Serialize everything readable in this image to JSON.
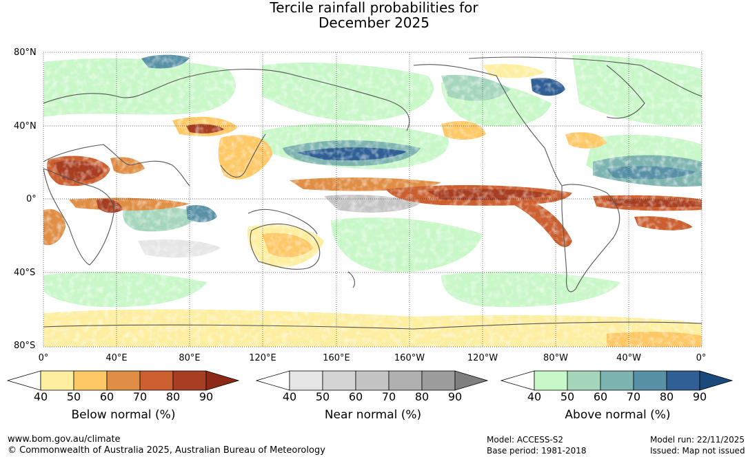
{
  "title": {
    "line1": "Tercile rainfall probabilities for",
    "line2": "December 2025"
  },
  "map": {
    "lat_labels": [
      "80°N",
      "40°N",
      "0°",
      "40°S",
      "80°S"
    ],
    "lon_labels": [
      "0°",
      "40°E",
      "80°E",
      "120°E",
      "160°E",
      "160°W",
      "120°W",
      "80°W",
      "40°W",
      "0°"
    ]
  },
  "legends": [
    {
      "id": "below",
      "caption": "Below normal (%)",
      "ticks": [
        "40",
        "50",
        "60",
        "70",
        "80",
        "90"
      ],
      "colors": [
        "#ffffff",
        "#fdeea0",
        "#fdc865",
        "#e08e45",
        "#cb5f30",
        "#a83e21",
        "#8c2a17"
      ]
    },
    {
      "id": "near",
      "caption": "Near normal (%)",
      "ticks": [
        "40",
        "50",
        "60",
        "70",
        "80",
        "90"
      ],
      "colors": [
        "#ffffff",
        "#e6e6e6",
        "#d4d4d4",
        "#c4c4c4",
        "#b0b0b0",
        "#9c9c9c",
        "#7f7f7f"
      ]
    },
    {
      "id": "above",
      "caption": "Above normal (%)",
      "ticks": [
        "40",
        "50",
        "60",
        "70",
        "80",
        "90"
      ],
      "colors": [
        "#ffffff",
        "#c8f7c8",
        "#a5d6bc",
        "#7eb4b0",
        "#5891a6",
        "#2f5f94",
        "#1a4a7c"
      ]
    }
  ],
  "footer": {
    "url": "www.bom.gov.au/climate",
    "copyright": "© Commonwealth of Australia 2025, Australian Bureau of Meteorology",
    "model": "Model: ACCESS-S2",
    "base_period": "Base period: 1981-2018",
    "model_run": "Model run: 22/11/2025",
    "issued": "Issued: Map not issued"
  }
}
